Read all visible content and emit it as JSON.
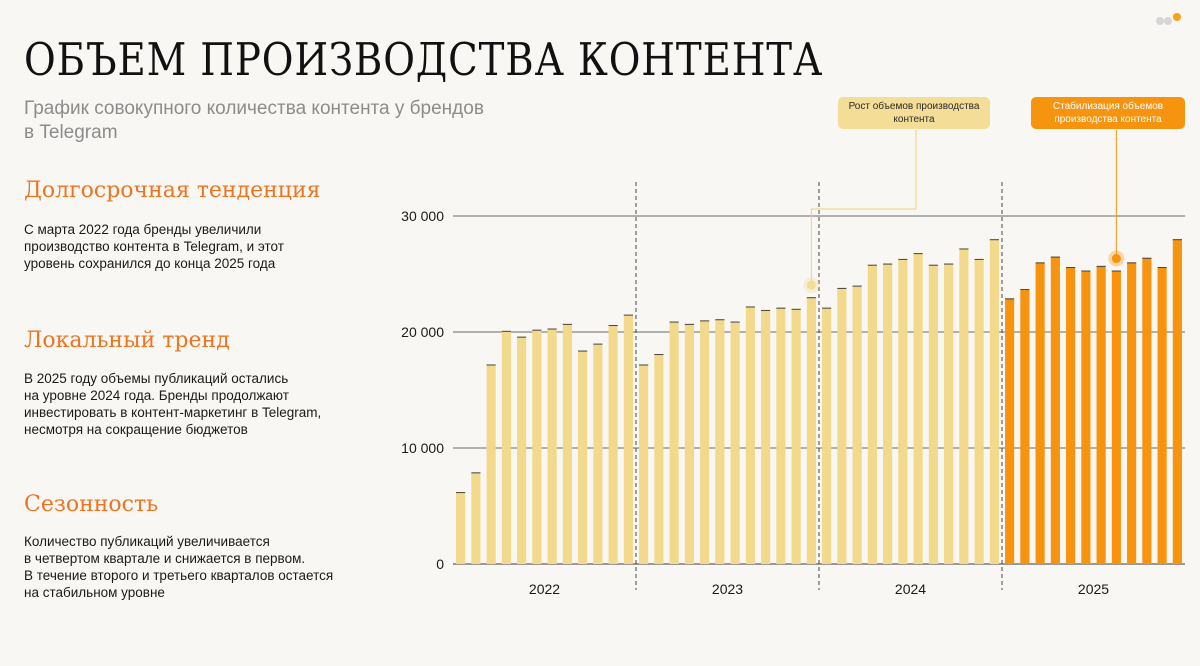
{
  "page": {
    "title": "ОБЪЕМ ПРОИЗВОДСТВА КОНТЕНТА",
    "subtitle": "График совокупного количества контента у брендов в Telegram"
  },
  "sections": [
    {
      "heading": "Долгосрочная тенденция",
      "text": "С марта 2022 года бренды увеличили\nпроизводство контента в Telegram, и этот\nуровень сохранился до конца 2025 года"
    },
    {
      "heading": "Локальный тренд",
      "text": "В 2025 году объемы публикаций остались\nна уровне 2024 года. Бренды продолжают\nинвестировать в контент-маркетинг в Telegram,\nнесмотря на сокращение бюджетов"
    },
    {
      "heading": "Сезонность",
      "text": "Количество публикаций увеличивается\nв четвертом квартале и снижается в первом.\nВ течение второго и третьего кварталов остается\nна стабильном уровне"
    }
  ],
  "callouts": {
    "growth": "Рост объемов производства контента",
    "stabilization": "Стабилизация объемов производства контента"
  },
  "colors": {
    "accent": "#ee7420",
    "bar_light": "#f2d98c",
    "bar_dark": "#f7940f",
    "callout_light": "#f4dd97",
    "callout_dark": "#f7940f",
    "nav_dot_grey": "#d6d6d6",
    "nav_dot_orange": "#f7a21b"
  },
  "nav_dots": [
    "nav-dot",
    "nav-dot",
    "nav-dot-active"
  ],
  "chart_data": {
    "type": "bar",
    "x_unit": "month",
    "groups": [
      {
        "label": "2022",
        "values": [
          6200,
          7900,
          17200,
          20100,
          19600,
          20200,
          20300,
          20700,
          18400,
          19000,
          20600,
          21500
        ]
      },
      {
        "label": "2023",
        "values": [
          17200,
          18100,
          20900,
          20700,
          21000,
          21100,
          20900,
          22200,
          21900,
          22100,
          22000,
          23000
        ]
      },
      {
        "label": "2024",
        "values": [
          22100,
          23800,
          24000,
          25800,
          25900,
          26300,
          26800,
          25800,
          25900,
          27200,
          26300,
          28000
        ]
      },
      {
        "label": "2025",
        "values": [
          22900,
          23700,
          26000,
          26500,
          25600,
          25300,
          25700,
          25300,
          26000,
          26400,
          25600,
          28000
        ]
      }
    ],
    "yticks": [
      "0",
      "10 000",
      "20 000",
      "30 000"
    ],
    "ytick_values": [
      0,
      10000,
      20000,
      30000
    ],
    "ylim": [
      0,
      30000
    ],
    "xlabel": "",
    "ylabel": "",
    "grid": true,
    "year_separators": "dashed",
    "highlighted_group": "2025",
    "markers": [
      {
        "group": "2023",
        "index": 11,
        "callout": "growth"
      },
      {
        "group": "2025",
        "index": 7,
        "callout": "stabilization"
      }
    ]
  }
}
